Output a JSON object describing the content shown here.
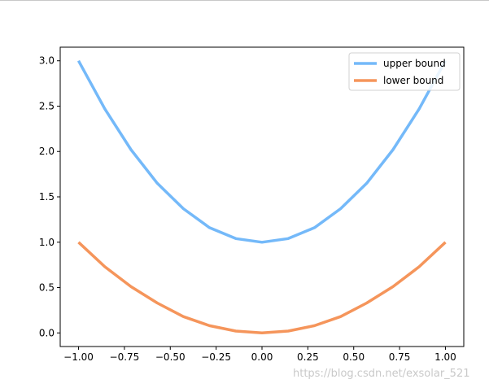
{
  "chart_data": {
    "type": "line",
    "title": "",
    "xlabel": "",
    "ylabel": "",
    "xlim": [
      -1.1,
      1.1
    ],
    "ylim": [
      -0.15,
      3.15
    ],
    "x_ticks": [
      -1.0,
      -0.75,
      -0.5,
      -0.25,
      0.0,
      0.25,
      0.5,
      0.75,
      1.0
    ],
    "x_tick_labels": [
      "−1.00",
      "−0.75",
      "−0.50",
      "−0.25",
      "0.00",
      "0.25",
      "0.50",
      "0.75",
      "1.00"
    ],
    "y_ticks": [
      0.0,
      0.5,
      1.0,
      1.5,
      2.0,
      2.5,
      3.0
    ],
    "y_tick_labels": [
      "0.0",
      "0.5",
      "1.0",
      "1.5",
      "2.0",
      "2.5",
      "3.0"
    ],
    "grid": false,
    "legend_position": "top-right",
    "x": [
      -1.0,
      -0.857,
      -0.714,
      -0.571,
      -0.429,
      -0.286,
      -0.143,
      0.0,
      0.143,
      0.286,
      0.429,
      0.571,
      0.714,
      0.857,
      1.0
    ],
    "series": [
      {
        "name": "upper bound",
        "color": "#74b9f9",
        "values": [
          3.0,
          2.47,
          2.02,
          1.65,
          1.37,
          1.16,
          1.04,
          1.0,
          1.04,
          1.16,
          1.37,
          1.65,
          2.02,
          2.47,
          3.0
        ]
      },
      {
        "name": "lower bound",
        "color": "#f5955b",
        "values": [
          1.0,
          0.73,
          0.51,
          0.33,
          0.18,
          0.08,
          0.02,
          0.0,
          0.02,
          0.08,
          0.18,
          0.33,
          0.51,
          0.73,
          1.0
        ]
      }
    ]
  },
  "watermark": "https://blog.csdn.net/exsolar_521"
}
